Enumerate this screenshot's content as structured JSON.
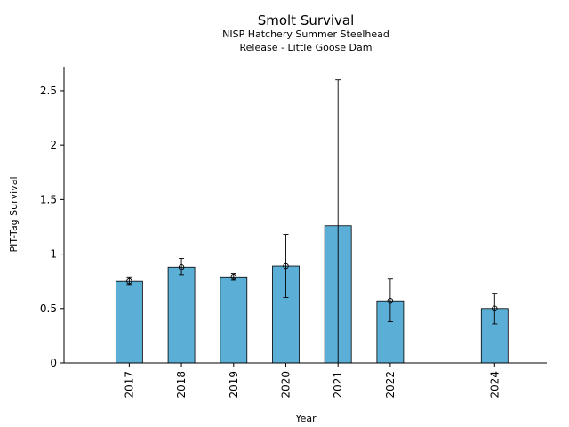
{
  "chart_data": {
    "type": "bar",
    "title": "Smolt Survival",
    "subtitle_lines": [
      "NISP Hatchery Summer Steelhead",
      "Release - Little Goose Dam"
    ],
    "xlabel": "Year",
    "ylabel": "PIT-Tag Survival",
    "ylim": [
      0,
      2.72
    ],
    "xlim": [
      2015.75,
      2025.0
    ],
    "yticks": [
      0,
      0.5,
      1,
      1.5,
      2,
      2.5
    ],
    "ytick_labels": [
      "0",
      "0.5",
      "1",
      "1.5",
      "2",
      "2.5"
    ],
    "grid": false,
    "bar_color": "#5BAED6",
    "series": [
      {
        "categories": [
          "2017",
          "2018",
          "2019",
          "2020",
          "2021",
          "2022",
          "2024"
        ],
        "x": [
          2017,
          2018,
          2019,
          2020,
          2021,
          2022,
          2024
        ],
        "values": [
          0.75,
          0.88,
          0.79,
          0.89,
          1.26,
          0.57,
          0.5
        ],
        "err_low": [
          0.72,
          0.81,
          0.76,
          0.6,
          0.0,
          0.38,
          0.36
        ],
        "err_high": [
          0.79,
          0.96,
          0.82,
          1.18,
          2.6,
          0.77,
          0.64
        ],
        "point_markers": [
          true,
          true,
          true,
          true,
          false,
          true,
          true
        ]
      }
    ]
  }
}
